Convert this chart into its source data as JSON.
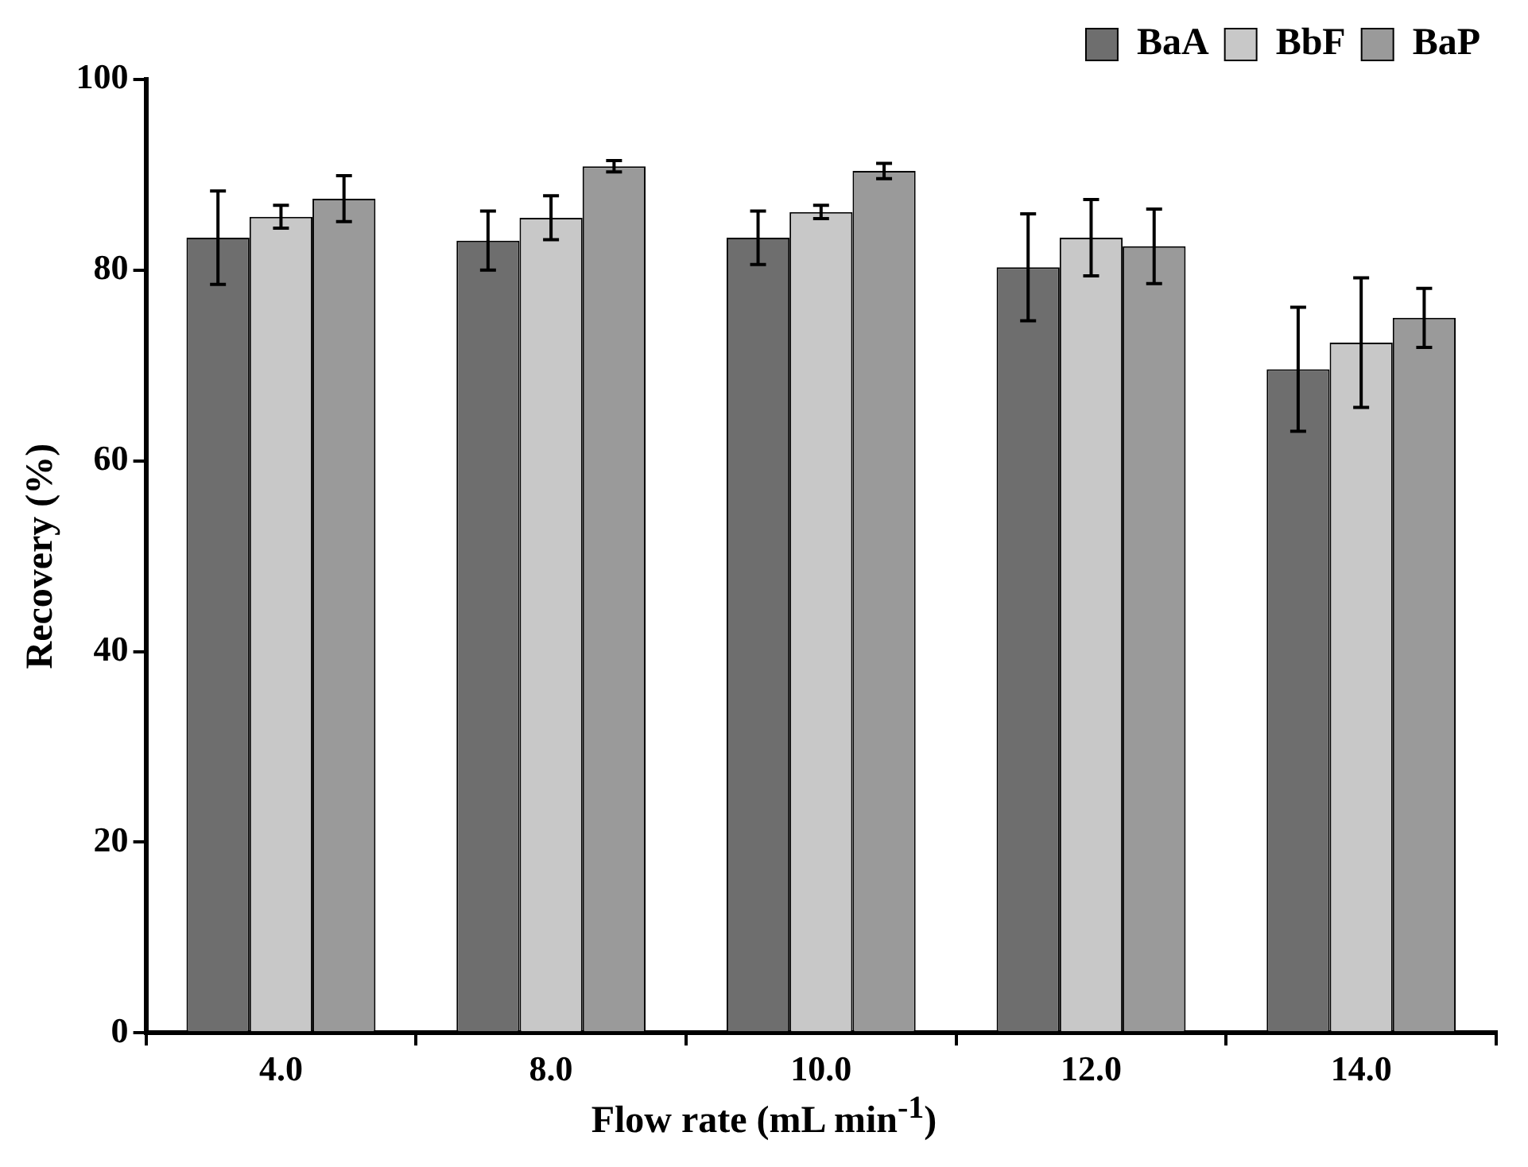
{
  "chart_data": {
    "type": "bar",
    "xlabel": "Flow rate (mL min$^{-1}$)",
    "ylabel": "Recovery (%)",
    "categories": [
      "4.0",
      "8.0",
      "10.0",
      "12.0",
      "14.0"
    ],
    "series": [
      {
        "name": "BaA",
        "color": "#6e6e6e",
        "values": [
          83.4,
          83.1,
          83.4,
          80.3,
          69.6
        ],
        "errors": [
          4.9,
          3.1,
          2.8,
          5.6,
          6.5
        ]
      },
      {
        "name": "BbF",
        "color": "#c8c8c8",
        "values": [
          85.6,
          85.5,
          86.1,
          83.4,
          72.4
        ],
        "errors": [
          1.2,
          2.3,
          0.7,
          4.0,
          6.8
        ]
      },
      {
        "name": "BaP",
        "color": "#9a9a9a",
        "values": [
          87.5,
          90.9,
          90.4,
          82.5,
          75.0
        ],
        "errors": [
          2.4,
          0.6,
          0.8,
          3.9,
          3.1
        ]
      }
    ],
    "ylim": [
      0,
      100
    ],
    "yticks": [
      0,
      20,
      40,
      60,
      80,
      100
    ],
    "grid": false,
    "legend": "top right"
  }
}
